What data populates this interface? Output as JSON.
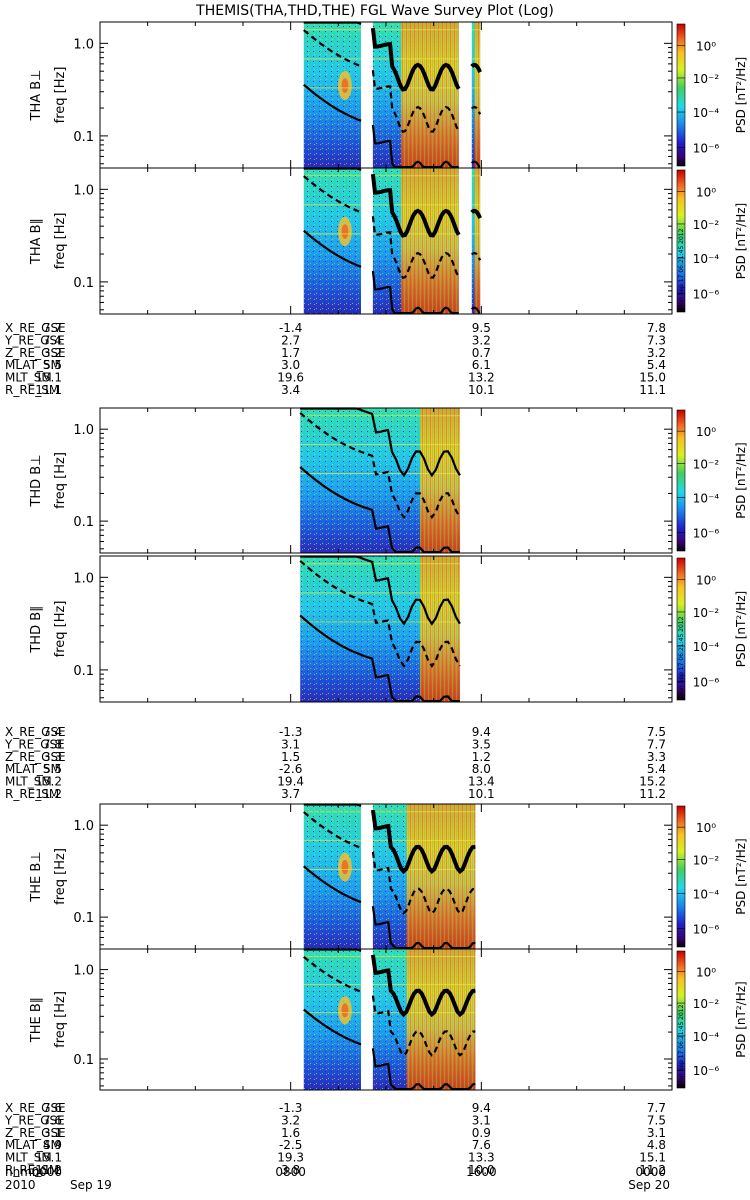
{
  "title": "THEMIS(THA,THD,THE) FGL Wave Survey Plot (Log)",
  "colorbar": {
    "label": "PSD [nT²/Hz]",
    "ticks": [
      "10⁰",
      "10⁻²",
      "10⁻⁴",
      "10⁻⁶"
    ],
    "stamp": "Mon Sep 17 06:21:45 2012"
  },
  "chart_data": [
    {
      "type": "heatmap",
      "group": "THA",
      "panels": [
        {
          "ylabel": "THA B⊥",
          "yunit": "freq [Hz]",
          "yscale": "log",
          "yticks": [
            "1.0",
            "0.1"
          ],
          "data_segments_hours": [
            [
              8.55,
              10.95
            ],
            [
              11.45,
              15.05
            ],
            [
              15.6,
              15.95
            ]
          ]
        },
        {
          "ylabel": "THA B∥",
          "yunit": "freq [Hz]",
          "yscale": "log",
          "yticks": [
            "1.0",
            "0.1"
          ],
          "data_segments_hours": [
            [
              8.55,
              10.95
            ],
            [
              11.45,
              15.05
            ],
            [
              15.6,
              15.95
            ]
          ]
        }
      ],
      "ephemeris": [
        {
          "name": "X_RE_GSE",
          "values": [
            "7.7",
            "-1.4",
            "9.5",
            "7.8"
          ]
        },
        {
          "name": "Y_RE_GSE",
          "values": [
            "7.4",
            "2.7",
            "3.2",
            "7.3"
          ]
        },
        {
          "name": "Z_RE_GSE",
          "values": [
            "3.2",
            "1.7",
            "0.7",
            "3.2"
          ]
        },
        {
          "name": "MLAT_SM",
          "values": [
            "5.5",
            "3.0",
            "6.1",
            "5.4"
          ]
        },
        {
          "name": "MLT_SM",
          "values": [
            "15.1",
            "19.6",
            "13.2",
            "15.0"
          ]
        },
        {
          "name": "R_RE_SM",
          "values": [
            "11.1",
            "3.4",
            "10.1",
            "11.1"
          ]
        }
      ]
    },
    {
      "type": "heatmap",
      "group": "THD",
      "panels": [
        {
          "ylabel": "THD B⊥",
          "yunit": "freq [Hz]",
          "yscale": "log",
          "yticks": [
            "1.0",
            "0.1"
          ],
          "data_segments_hours": [
            [
              8.4,
              15.1
            ]
          ]
        },
        {
          "ylabel": "THD B∥",
          "yunit": "freq [Hz]",
          "yscale": "log",
          "yticks": [
            "1.0",
            "0.1"
          ],
          "data_segments_hours": [
            [
              8.4,
              15.1
            ]
          ]
        }
      ],
      "ephemeris": [
        {
          "name": "X_RE_GSE",
          "values": [
            "7.4",
            "-1.3",
            "9.4",
            "7.5"
          ]
        },
        {
          "name": "Y_RE_GSE",
          "values": [
            "7.8",
            "3.1",
            "3.5",
            "7.7"
          ]
        },
        {
          "name": "Z_RE_GSE",
          "values": [
            "3.3",
            "1.5",
            "1.2",
            "3.3"
          ]
        },
        {
          "name": "MLAT_SM",
          "values": [
            "5.5",
            "-2.6",
            "8.0",
            "5.4"
          ]
        },
        {
          "name": "MLT_SM",
          "values": [
            "15.2",
            "19.4",
            "13.4",
            "15.2"
          ]
        },
        {
          "name": "R_RE_SM",
          "values": [
            "11.2",
            "3.7",
            "10.1",
            "11.2"
          ]
        }
      ]
    },
    {
      "type": "heatmap",
      "group": "THE",
      "panels": [
        {
          "ylabel": "THE B⊥",
          "yunit": "freq [Hz]",
          "yscale": "log",
          "yticks": [
            "1.0",
            "0.1"
          ],
          "data_segments_hours": [
            [
              8.55,
              10.95
            ],
            [
              11.45,
              15.75
            ]
          ]
        },
        {
          "ylabel": "THE B∥",
          "yunit": "freq [Hz]",
          "yscale": "log",
          "yticks": [
            "1.0",
            "0.1"
          ],
          "data_segments_hours": [
            [
              8.55,
              10.95
            ],
            [
              11.45,
              15.75
            ]
          ]
        }
      ],
      "ephemeris": [
        {
          "name": "X_RE_GSE",
          "values": [
            "7.6",
            "-1.3",
            "9.4",
            "7.7"
          ]
        },
        {
          "name": "Y_RE_GSE",
          "values": [
            "7.6",
            "3.2",
            "3.1",
            "7.5"
          ]
        },
        {
          "name": "Z_RE_GSE",
          "values": [
            "3.1",
            "1.6",
            "0.9",
            "3.1"
          ]
        },
        {
          "name": "MLAT_SM",
          "values": [
            "4.9",
            "-2.5",
            "7.6",
            "4.8"
          ]
        },
        {
          "name": "MLT_SM",
          "values": [
            "15.1",
            "19.3",
            "13.3",
            "15.1"
          ]
        },
        {
          "name": "R_RE_SM",
          "values": [
            "11.2",
            "3.8",
            "10.0",
            "11.2"
          ]
        }
      ]
    }
  ],
  "time_axis": {
    "row1_label": "hhmm",
    "row2_label": "2010",
    "ticks": [
      {
        "hours": 0,
        "hhmm": "0000",
        "date": "Sep 19"
      },
      {
        "hours": 8,
        "hhmm": "0800",
        "date": ""
      },
      {
        "hours": 16,
        "hhmm": "1600",
        "date": ""
      },
      {
        "hours": 24,
        "hhmm": "0000",
        "date": "Sep 20"
      }
    ]
  }
}
